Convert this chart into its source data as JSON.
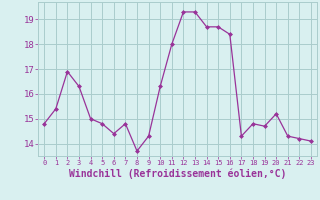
{
  "x": [
    0,
    1,
    2,
    3,
    4,
    5,
    6,
    7,
    8,
    9,
    10,
    11,
    12,
    13,
    14,
    15,
    16,
    17,
    18,
    19,
    20,
    21,
    22,
    23
  ],
  "y": [
    14.8,
    15.4,
    16.9,
    16.3,
    15.0,
    14.8,
    14.4,
    14.8,
    13.7,
    14.3,
    16.3,
    18.0,
    19.3,
    19.3,
    18.7,
    18.7,
    18.4,
    14.3,
    14.8,
    14.7,
    15.2,
    14.3,
    14.2,
    14.1
  ],
  "line_color": "#993399",
  "marker": "D",
  "marker_size": 2,
  "bg_color": "#d9f0f0",
  "grid_color": "#aacccc",
  "xlabel": "Windchill (Refroidissement éolien,°C)",
  "xlabel_fontsize": 7,
  "xtick_labels": [
    "0",
    "1",
    "2",
    "3",
    "4",
    "5",
    "6",
    "7",
    "8",
    "9",
    "10",
    "11",
    "12",
    "13",
    "14",
    "15",
    "16",
    "17",
    "18",
    "19",
    "20",
    "21",
    "22",
    "23"
  ],
  "ytick_labels": [
    "14",
    "15",
    "16",
    "17",
    "18",
    "19"
  ],
  "ylim": [
    13.5,
    19.7
  ],
  "xlim": [
    -0.5,
    23.5
  ]
}
